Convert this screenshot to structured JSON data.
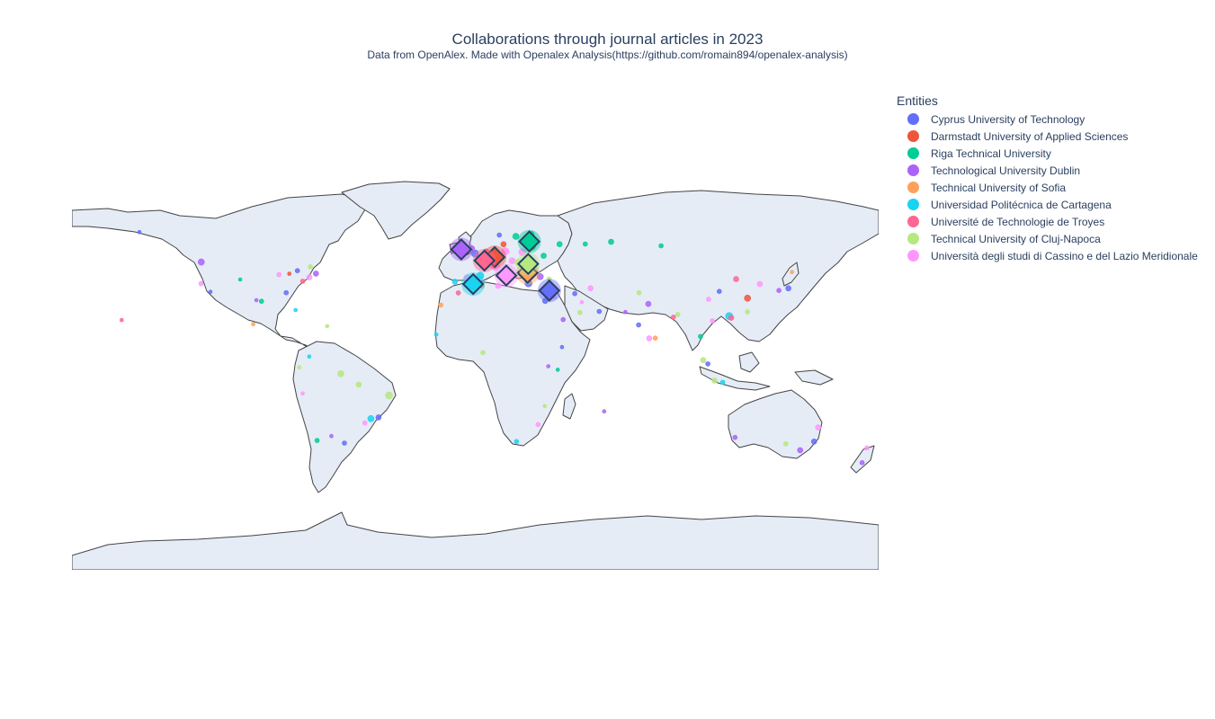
{
  "title": "Collaborations through journal articles in 2023",
  "subtitle": "Data from OpenAlex. Made with Openalex Analysis(https://github.com/romain894/openalex-analysis)",
  "legend": {
    "title": "Entities",
    "items": [
      {
        "label": "Cyprus University of Technology",
        "color": "#636efa"
      },
      {
        "label": "Darmstadt University of Applied Sciences",
        "color": "#EF553B"
      },
      {
        "label": "Riga Technical University",
        "color": "#00cc96"
      },
      {
        "label": "Technological University Dublin",
        "color": "#ab63fa"
      },
      {
        "label": "Technical University of Sofia",
        "color": "#FFA15A"
      },
      {
        "label": "Universidad Politécnica de Cartagena",
        "color": "#19d3f3"
      },
      {
        "label": "Université de Technologie de Troyes",
        "color": "#FF6692"
      },
      {
        "label": "Technical University of Cluj-Napoca",
        "color": "#B6E880"
      },
      {
        "label": "Università degli studi di Cassino e del Lazio Meridionale",
        "color": "#FF97FF"
      }
    ]
  },
  "map": {
    "projection": "equirectangular",
    "land_color": "#e5ecf6",
    "border_color": "#444444",
    "home_institutions": [
      {
        "entity": 0,
        "lon": 33.04,
        "lat": 34.68
      },
      {
        "entity": 1,
        "lon": 8.65,
        "lat": 49.87
      },
      {
        "entity": 2,
        "lon": 24.11,
        "lat": 56.95
      },
      {
        "entity": 3,
        "lon": -6.26,
        "lat": 53.35
      },
      {
        "entity": 4,
        "lon": 23.32,
        "lat": 42.7
      },
      {
        "entity": 5,
        "lon": -0.98,
        "lat": 37.6
      },
      {
        "entity": 6,
        "lon": 4.08,
        "lat": 48.3
      },
      {
        "entity": 7,
        "lon": 23.59,
        "lat": 46.77
      },
      {
        "entity": 8,
        "lon": 13.83,
        "lat": 41.49
      }
    ],
    "collaborators": [
      {
        "entity": 3,
        "lon": -122.3,
        "lat": 47.6,
        "size": 7
      },
      {
        "entity": 0,
        "lon": -118.2,
        "lat": 34.1,
        "size": 4
      },
      {
        "entity": 8,
        "lon": -122.4,
        "lat": 37.8,
        "size": 5
      },
      {
        "entity": 2,
        "lon": -104.9,
        "lat": 39.7,
        "size": 4
      },
      {
        "entity": 3,
        "lon": -97.7,
        "lat": 30.3,
        "size": 4
      },
      {
        "entity": 2,
        "lon": -95.4,
        "lat": 29.8,
        "size": 5
      },
      {
        "entity": 8,
        "lon": -87.6,
        "lat": 41.9,
        "size": 5
      },
      {
        "entity": 0,
        "lon": -84.4,
        "lat": 33.7,
        "size": 5
      },
      {
        "entity": 5,
        "lon": -80.2,
        "lat": 25.8,
        "size": 4
      },
      {
        "entity": 6,
        "lon": -77.0,
        "lat": 38.9,
        "size": 5
      },
      {
        "entity": 8,
        "lon": -74.0,
        "lat": 40.7,
        "size": 6
      },
      {
        "entity": 3,
        "lon": -71.1,
        "lat": 42.4,
        "size": 6
      },
      {
        "entity": 0,
        "lon": -79.4,
        "lat": 43.7,
        "size": 5
      },
      {
        "entity": 7,
        "lon": -73.6,
        "lat": 45.5,
        "size": 5
      },
      {
        "entity": 1,
        "lon": -83.0,
        "lat": 42.3,
        "size": 4
      },
      {
        "entity": 4,
        "lon": -99.1,
        "lat": 19.4,
        "size": 4
      },
      {
        "entity": 5,
        "lon": -74.1,
        "lat": 4.7,
        "size": 4
      },
      {
        "entity": 7,
        "lon": -78.5,
        "lat": -0.2,
        "size": 4
      },
      {
        "entity": 8,
        "lon": -77.0,
        "lat": -12.0,
        "size": 4
      },
      {
        "entity": 7,
        "lon": -60.0,
        "lat": -3.1,
        "size": 7
      },
      {
        "entity": 7,
        "lon": -52.0,
        "lat": -8.0,
        "size": 6
      },
      {
        "entity": 7,
        "lon": -38.5,
        "lat": -12.9,
        "size": 8
      },
      {
        "entity": 0,
        "lon": -43.2,
        "lat": -22.9,
        "size": 6
      },
      {
        "entity": 5,
        "lon": -46.6,
        "lat": -23.5,
        "size": 7
      },
      {
        "entity": 8,
        "lon": -49.3,
        "lat": -25.4,
        "size": 5
      },
      {
        "entity": 2,
        "lon": -70.6,
        "lat": -33.4,
        "size": 5
      },
      {
        "entity": 0,
        "lon": -58.4,
        "lat": -34.6,
        "size": 5
      },
      {
        "entity": 3,
        "lon": -64.2,
        "lat": -31.4,
        "size": 4
      },
      {
        "entity": 5,
        "lon": -9.1,
        "lat": 38.7,
        "size": 6
      },
      {
        "entity": 8,
        "lon": -3.7,
        "lat": 40.4,
        "size": 7
      },
      {
        "entity": 5,
        "lon": 2.2,
        "lat": 41.4,
        "size": 8
      },
      {
        "entity": 6,
        "lon": 2.35,
        "lat": 48.85,
        "size": 9
      },
      {
        "entity": 0,
        "lon": -0.13,
        "lat": 51.5,
        "size": 8
      },
      {
        "entity": 3,
        "lon": -1.5,
        "lat": 53.8,
        "size": 6
      },
      {
        "entity": 1,
        "lon": 4.9,
        "lat": 52.4,
        "size": 6
      },
      {
        "entity": 8,
        "lon": 13.4,
        "lat": 52.5,
        "size": 8
      },
      {
        "entity": 2,
        "lon": 18.1,
        "lat": 59.3,
        "size": 7
      },
      {
        "entity": 2,
        "lon": 24.9,
        "lat": 60.2,
        "size": 7
      },
      {
        "entity": 0,
        "lon": 10.7,
        "lat": 59.9,
        "size": 5
      },
      {
        "entity": 1,
        "lon": 12.6,
        "lat": 55.7,
        "size": 6
      },
      {
        "entity": 8,
        "lon": 21.0,
        "lat": 52.2,
        "size": 8
      },
      {
        "entity": 2,
        "lon": 25.3,
        "lat": 54.7,
        "size": 8
      },
      {
        "entity": 2,
        "lon": 24.75,
        "lat": 59.4,
        "size": 7
      },
      {
        "entity": 8,
        "lon": 16.4,
        "lat": 48.2,
        "size": 7
      },
      {
        "entity": 7,
        "lon": 19.0,
        "lat": 47.5,
        "size": 7
      },
      {
        "entity": 4,
        "lon": 26.1,
        "lat": 44.4,
        "size": 8
      },
      {
        "entity": 8,
        "lon": 9.2,
        "lat": 45.5,
        "size": 9
      },
      {
        "entity": 8,
        "lon": 12.5,
        "lat": 41.9,
        "size": 9
      },
      {
        "entity": 8,
        "lon": 14.3,
        "lat": 40.9,
        "size": 8
      },
      {
        "entity": 0,
        "lon": 23.7,
        "lat": 38.0,
        "size": 8
      },
      {
        "entity": 3,
        "lon": 28.98,
        "lat": 41.0,
        "size": 7
      },
      {
        "entity": 2,
        "lon": 30.5,
        "lat": 50.45,
        "size": 6
      },
      {
        "entity": 2,
        "lon": 37.6,
        "lat": 55.75,
        "size": 6
      },
      {
        "entity": 7,
        "lon": 32.9,
        "lat": 39.9,
        "size": 5
      },
      {
        "entity": 8,
        "lon": 35.2,
        "lat": 31.8,
        "size": 5
      },
      {
        "entity": 0,
        "lon": 31.2,
        "lat": 30.0,
        "size": 6
      },
      {
        "entity": 3,
        "lon": 39.2,
        "lat": 21.5,
        "size": 5
      },
      {
        "entity": 7,
        "lon": 46.7,
        "lat": 24.7,
        "size": 5
      },
      {
        "entity": 8,
        "lon": 51.4,
        "lat": 35.7,
        "size": 6
      },
      {
        "entity": 0,
        "lon": 55.3,
        "lat": 25.2,
        "size": 5
      },
      {
        "entity": 2,
        "lon": 49.1,
        "lat": 55.8,
        "size": 5
      },
      {
        "entity": 2,
        "lon": 60.6,
        "lat": 56.8,
        "size": 6
      },
      {
        "entity": 2,
        "lon": 82.9,
        "lat": 55.0,
        "size": 5
      },
      {
        "entity": 3,
        "lon": 67.0,
        "lat": 24.9,
        "size": 4
      },
      {
        "entity": 7,
        "lon": 73.1,
        "lat": 33.7,
        "size": 5
      },
      {
        "entity": 3,
        "lon": 77.2,
        "lat": 28.6,
        "size": 6
      },
      {
        "entity": 0,
        "lon": 72.9,
        "lat": 19.1,
        "size": 5
      },
      {
        "entity": 8,
        "lon": 77.6,
        "lat": 13.0,
        "size": 6
      },
      {
        "entity": 4,
        "lon": 80.3,
        "lat": 13.1,
        "size": 5
      },
      {
        "entity": 6,
        "lon": 88.4,
        "lat": 22.6,
        "size": 5
      },
      {
        "entity": 7,
        "lon": 90.4,
        "lat": 23.8,
        "size": 5
      },
      {
        "entity": 2,
        "lon": 100.5,
        "lat": 13.8,
        "size": 5
      },
      {
        "entity": 7,
        "lon": 101.7,
        "lat": 3.1,
        "size": 6
      },
      {
        "entity": 0,
        "lon": 103.8,
        "lat": 1.35,
        "size": 5
      },
      {
        "entity": 7,
        "lon": 106.8,
        "lat": -6.2,
        "size": 6
      },
      {
        "entity": 5,
        "lon": 110.4,
        "lat": -7.0,
        "size": 5
      },
      {
        "entity": 8,
        "lon": 105.8,
        "lat": 21.0,
        "size": 5
      },
      {
        "entity": 6,
        "lon": 116.4,
        "lat": 39.9,
        "size": 6
      },
      {
        "entity": 1,
        "lon": 121.5,
        "lat": 31.2,
        "size": 7
      },
      {
        "entity": 5,
        "lon": 113.3,
        "lat": 23.1,
        "size": 8
      },
      {
        "entity": 6,
        "lon": 114.2,
        "lat": 22.3,
        "size": 6
      },
      {
        "entity": 8,
        "lon": 104.1,
        "lat": 30.7,
        "size": 5
      },
      {
        "entity": 0,
        "lon": 108.9,
        "lat": 34.3,
        "size": 5
      },
      {
        "entity": 7,
        "lon": 121.5,
        "lat": 25.0,
        "size": 5
      },
      {
        "entity": 8,
        "lon": 127.0,
        "lat": 37.6,
        "size": 6
      },
      {
        "entity": 0,
        "lon": 139.7,
        "lat": 35.7,
        "size": 6
      },
      {
        "entity": 3,
        "lon": 135.5,
        "lat": 34.7,
        "size": 5
      },
      {
        "entity": 4,
        "lon": 141.3,
        "lat": 43.1,
        "size": 4
      },
      {
        "entity": 3,
        "lon": 115.9,
        "lat": -32.0,
        "size": 5
      },
      {
        "entity": 8,
        "lon": 153.0,
        "lat": -27.5,
        "size": 6
      },
      {
        "entity": 0,
        "lon": 151.2,
        "lat": -33.9,
        "size": 6
      },
      {
        "entity": 3,
        "lon": 144.96,
        "lat": -37.8,
        "size": 6
      },
      {
        "entity": 8,
        "lon": 174.8,
        "lat": -36.8,
        "size": 5
      },
      {
        "entity": 3,
        "lon": 172.6,
        "lat": -43.5,
        "size": 5
      },
      {
        "entity": 7,
        "lon": 138.6,
        "lat": -34.9,
        "size": 5
      },
      {
        "entity": 5,
        "lon": 18.4,
        "lat": -33.9,
        "size": 5
      },
      {
        "entity": 8,
        "lon": 28.0,
        "lat": -26.2,
        "size": 5
      },
      {
        "entity": 2,
        "lon": 36.8,
        "lat": -1.3,
        "size": 4
      },
      {
        "entity": 7,
        "lon": 3.4,
        "lat": 6.5,
        "size": 5
      },
      {
        "entity": 6,
        "lon": -7.6,
        "lat": 33.6,
        "size": 5
      },
      {
        "entity": 8,
        "lon": 10.2,
        "lat": 36.8,
        "size": 6
      },
      {
        "entity": 4,
        "lon": 3.0,
        "lat": 36.7,
        "size": 5
      },
      {
        "entity": 0,
        "lon": 38.7,
        "lat": 9.0,
        "size": 4
      },
      {
        "entity": 3,
        "lon": 32.6,
        "lat": 0.3,
        "size": 4
      },
      {
        "entity": 7,
        "lon": 31.0,
        "lat": -17.8,
        "size": 4
      },
      {
        "entity": 5,
        "lon": -17.4,
        "lat": 14.7,
        "size": 4
      },
      {
        "entity": 4,
        "lon": -15.4,
        "lat": 28.1,
        "size": 5
      },
      {
        "entity": 0,
        "lon": 44.4,
        "lat": 33.3,
        "size": 5
      },
      {
        "entity": 8,
        "lon": 47.5,
        "lat": 29.4,
        "size": 4
      },
      {
        "entity": 3,
        "lon": 57.5,
        "lat": -20.2,
        "size": 4
      },
      {
        "entity": 6,
        "lon": -157.8,
        "lat": 21.3,
        "size": 4
      },
      {
        "entity": 0,
        "lon": -149.9,
        "lat": 61.2,
        "size": 4
      },
      {
        "entity": 7,
        "lon": -66.1,
        "lat": 18.5,
        "size": 4
      }
    ]
  }
}
